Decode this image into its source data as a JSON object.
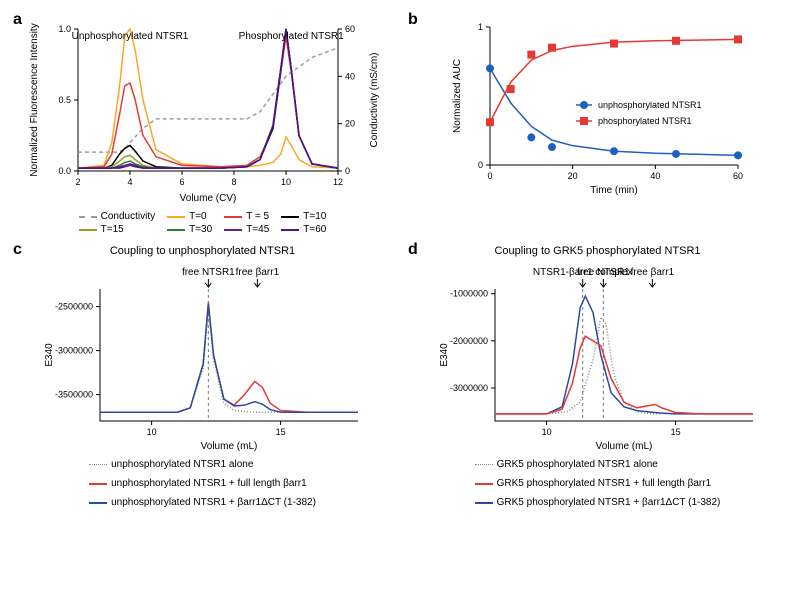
{
  "panel_a": {
    "label": "a",
    "type": "line",
    "xlabel": "Volume (CV)",
    "ylabel_left": "Normalized Fluorescence Intensity",
    "ylabel_right": "Conductivity (mS/cm)",
    "annot_left": "Unphosphorylated NTSR1",
    "annot_right": "Phosphorylated NTSR1",
    "xlim": [
      2,
      12
    ],
    "xtick_step": 2,
    "ylim_left": [
      0,
      1.0
    ],
    "ytick_left": [
      0,
      0.5,
      1.0
    ],
    "ylim_right": [
      0,
      60
    ],
    "ytick_right_step": 20,
    "background_color": "#ffffff",
    "line_width": 1.5,
    "legend": {
      "conductivity_label": "Conductivity",
      "t_labels": [
        "T=0",
        "T = 5",
        "T=10",
        "T=15",
        "T=30",
        "T=45",
        "T=60"
      ]
    },
    "conductivity": {
      "color": "#9e9e9e",
      "dash": "4,3",
      "x": [
        2,
        3,
        3.5,
        3.8,
        4,
        4.5,
        5,
        7.5,
        8,
        8.5,
        9,
        10,
        11,
        12
      ],
      "y": [
        8,
        8,
        8,
        9,
        12,
        18,
        22,
        22,
        22,
        22,
        25,
        40,
        48,
        52
      ]
    },
    "series": [
      {
        "name": "T=0",
        "color": "#f9a825",
        "x": [
          2,
          3,
          3.3,
          3.6,
          3.8,
          4,
          4.2,
          4.5,
          5,
          6,
          7.5,
          8.5,
          9,
          9.5,
          9.8,
          10,
          10.2,
          10.5,
          11,
          12
        ],
        "y": [
          0.02,
          0.04,
          0.2,
          0.6,
          0.95,
          1.0,
          0.85,
          0.5,
          0.15,
          0.05,
          0.03,
          0.03,
          0.04,
          0.06,
          0.12,
          0.24,
          0.18,
          0.08,
          0.03,
          0.02
        ]
      },
      {
        "name": "T=5",
        "color": "#e53935",
        "x": [
          2,
          3,
          3.3,
          3.6,
          3.8,
          4,
          4.2,
          4.5,
          5,
          6,
          7.5,
          8.5,
          9,
          9.5,
          9.8,
          10,
          10.2,
          10.5,
          11,
          12
        ],
        "y": [
          0.02,
          0.03,
          0.12,
          0.4,
          0.6,
          0.62,
          0.5,
          0.25,
          0.1,
          0.04,
          0.03,
          0.04,
          0.1,
          0.3,
          0.7,
          0.95,
          0.7,
          0.25,
          0.05,
          0.02
        ]
      },
      {
        "name": "T=10",
        "color": "#000000",
        "x": [
          2,
          3,
          3.3,
          3.6,
          3.8,
          4,
          4.2,
          4.5,
          5,
          6,
          7.5,
          8.5,
          9,
          9.5,
          9.8,
          10,
          10.2,
          10.5,
          11,
          12
        ],
        "y": [
          0.02,
          0.02,
          0.04,
          0.12,
          0.16,
          0.18,
          0.14,
          0.07,
          0.03,
          0.02,
          0.02,
          0.03,
          0.08,
          0.3,
          0.7,
          1.0,
          0.72,
          0.25,
          0.05,
          0.02
        ]
      },
      {
        "name": "T=15",
        "color": "#9e9d24",
        "x": [
          2,
          3,
          3.3,
          3.6,
          3.8,
          4,
          4.2,
          4.5,
          5,
          6,
          7.5,
          8.5,
          9,
          9.5,
          9.8,
          10,
          10.2,
          10.5,
          11,
          12
        ],
        "y": [
          0.02,
          0.02,
          0.03,
          0.07,
          0.1,
          0.11,
          0.08,
          0.04,
          0.02,
          0.02,
          0.02,
          0.03,
          0.08,
          0.32,
          0.72,
          1.0,
          0.72,
          0.25,
          0.05,
          0.02
        ]
      },
      {
        "name": "T=30",
        "color": "#2e7d32",
        "x": [
          2,
          3,
          3.3,
          3.6,
          3.8,
          4,
          4.2,
          4.5,
          5,
          6,
          7.5,
          8.5,
          9,
          9.5,
          9.8,
          10,
          10.2,
          10.5,
          11,
          12
        ],
        "y": [
          0.02,
          0.02,
          0.02,
          0.04,
          0.06,
          0.07,
          0.05,
          0.03,
          0.02,
          0.02,
          0.02,
          0.03,
          0.08,
          0.32,
          0.72,
          1.0,
          0.72,
          0.25,
          0.05,
          0.02
        ]
      },
      {
        "name": "T=45",
        "color": "#6a1b9a",
        "x": [
          2,
          3,
          3.3,
          3.6,
          3.8,
          4,
          4.2,
          4.5,
          5,
          6,
          7.5,
          8.5,
          9,
          9.5,
          9.8,
          10,
          10.2,
          10.5,
          11,
          12
        ],
        "y": [
          0.02,
          0.02,
          0.02,
          0.03,
          0.04,
          0.05,
          0.04,
          0.02,
          0.02,
          0.02,
          0.02,
          0.03,
          0.08,
          0.32,
          0.72,
          1.0,
          0.72,
          0.25,
          0.05,
          0.02
        ]
      },
      {
        "name": "T=60",
        "color": "#4a148c",
        "x": [
          2,
          3,
          3.3,
          3.6,
          3.8,
          4,
          4.2,
          4.5,
          5,
          6,
          7.5,
          8.5,
          9,
          9.5,
          9.8,
          10,
          10.2,
          10.5,
          11,
          12
        ],
        "y": [
          0.02,
          0.02,
          0.02,
          0.02,
          0.03,
          0.04,
          0.03,
          0.02,
          0.02,
          0.02,
          0.02,
          0.03,
          0.08,
          0.32,
          0.72,
          1.0,
          0.72,
          0.25,
          0.05,
          0.02
        ]
      }
    ]
  },
  "panel_b": {
    "label": "b",
    "type": "scatter-line",
    "xlabel": "Time (min)",
    "ylabel": "Normalized AUC",
    "xlim": [
      0,
      60
    ],
    "xtick_step": 20,
    "ylim": [
      0,
      1
    ],
    "ytick_positions": [
      0,
      1
    ],
    "ytick_labels": [
      "0",
      "1"
    ],
    "legend": [
      {
        "label": "unphosphorylated NTSR1",
        "color": "#1f5fbf",
        "marker": "circle"
      },
      {
        "label": "phosphorylated NTSR1",
        "color": "#e53935",
        "marker": "square"
      }
    ],
    "series": [
      {
        "name": "unphosphorylated",
        "color": "#1f5fbf",
        "marker": "circle",
        "points_x": [
          0,
          5,
          10,
          15,
          30,
          45,
          60
        ],
        "points_y": [
          0.7,
          0.55,
          0.2,
          0.13,
          0.1,
          0.08,
          0.07
        ],
        "fit_x": [
          0,
          5,
          10,
          15,
          20,
          30,
          40,
          50,
          60
        ],
        "fit_y": [
          0.7,
          0.45,
          0.28,
          0.18,
          0.14,
          0.1,
          0.085,
          0.078,
          0.07
        ]
      },
      {
        "name": "phosphorylated",
        "color": "#e53935",
        "marker": "square",
        "points_x": [
          0,
          5,
          10,
          15,
          30,
          45,
          60
        ],
        "points_y": [
          0.31,
          0.55,
          0.8,
          0.85,
          0.88,
          0.9,
          0.91
        ],
        "fit_x": [
          0,
          5,
          10,
          15,
          20,
          30,
          40,
          50,
          60
        ],
        "fit_y": [
          0.31,
          0.6,
          0.76,
          0.83,
          0.86,
          0.89,
          0.9,
          0.905,
          0.91
        ]
      }
    ]
  },
  "panel_c": {
    "label": "c",
    "title": "Coupling to unphosphorylated NTSR1",
    "type": "line",
    "xlabel": "Volume (mL)",
    "ylabel": "E340",
    "xlim": [
      8,
      18
    ],
    "xtick_positions": [
      10,
      15
    ],
    "ylim": [
      -3800000,
      -2300000
    ],
    "ytick_positions": [
      -3500000,
      -3000000,
      -2500000
    ],
    "ytick_labels": [
      "-3500000",
      "-3000000",
      "-2500000"
    ],
    "arrows": [
      {
        "label": "free NTSR1",
        "x": 12.2
      },
      {
        "label": "free βarr1",
        "x": 14.1
      }
    ],
    "vline": {
      "x": 12.2,
      "color": "#777",
      "dash": "3,3"
    },
    "legend": [
      {
        "label": "unphosphorylated NTSR1 alone",
        "color": "#888",
        "style": "dotted"
      },
      {
        "label": "unphosphorylated NTSR1 + full length βarr1",
        "color": "#e53935",
        "style": "solid"
      },
      {
        "label": "unphosphorylated NTSR1 + βarr1ΔCT (1-382)",
        "color": "#2f4a9e",
        "style": "solid"
      }
    ],
    "series": [
      {
        "name": "alone",
        "color": "#888",
        "dash": "1,2",
        "x": [
          8,
          10,
          11,
          11.5,
          12,
          12.2,
          12.4,
          12.8,
          13.2,
          14,
          15,
          16,
          18
        ],
        "y": [
          -3700000,
          -3700000,
          -3700000,
          -3650000,
          -3200000,
          -2500000,
          -3100000,
          -3600000,
          -3680000,
          -3700000,
          -3700000,
          -3700000,
          -3700000
        ]
      },
      {
        "name": "full",
        "color": "#e53935",
        "dash": "",
        "x": [
          8,
          10,
          11,
          11.5,
          12,
          12.2,
          12.4,
          12.8,
          13.2,
          13.6,
          14,
          14.3,
          14.6,
          15,
          16,
          18
        ],
        "y": [
          -3700000,
          -3700000,
          -3700000,
          -3650000,
          -3150000,
          -2450000,
          -3050000,
          -3550000,
          -3620000,
          -3500000,
          -3350000,
          -3420000,
          -3600000,
          -3680000,
          -3700000,
          -3700000
        ]
      },
      {
        "name": "dct",
        "color": "#2f4a9e",
        "dash": "",
        "x": [
          8,
          10,
          11,
          11.5,
          12,
          12.2,
          12.4,
          12.8,
          13.2,
          13.6,
          14,
          14.3,
          14.6,
          15,
          16,
          18
        ],
        "y": [
          -3700000,
          -3700000,
          -3700000,
          -3650000,
          -3150000,
          -2470000,
          -3050000,
          -3550000,
          -3630000,
          -3620000,
          -3580000,
          -3610000,
          -3670000,
          -3700000,
          -3700000,
          -3700000
        ]
      }
    ]
  },
  "panel_d": {
    "label": "d",
    "title": "Coupling to GRK5 phosphorylated NTSR1",
    "type": "line",
    "xlabel": "Volume (mL)",
    "ylabel": "E340",
    "xlim": [
      8,
      18
    ],
    "xtick_positions": [
      10,
      15
    ],
    "ylim": [
      -3700000,
      -900000
    ],
    "ytick_positions": [
      -3000000,
      -2000000,
      -1000000
    ],
    "ytick_labels": [
      "-3000000",
      "-2000000",
      "-1000000"
    ],
    "arrows": [
      {
        "label": "NTSR1-βarr1 complex",
        "x": 11.4
      },
      {
        "label": "free NTSR1",
        "x": 12.2
      },
      {
        "label": "free βarr1",
        "x": 14.1
      }
    ],
    "vlines": [
      {
        "x": 11.4,
        "color": "#777",
        "dash": "3,3"
      },
      {
        "x": 12.2,
        "color": "#777",
        "dash": "3,3"
      }
    ],
    "legend": [
      {
        "label": "GRK5 phosphorylated NTSR1 alone",
        "color": "#888",
        "style": "dotted"
      },
      {
        "label": "GRK5 phosphorylated NTSR1 + full length βarr1",
        "color": "#e53935",
        "style": "solid"
      },
      {
        "label": "GRK5 phosphorylated NTSR1 + βarr1ΔCT (1-382)",
        "color": "#2f4a9e",
        "style": "solid"
      }
    ],
    "series": [
      {
        "name": "alone",
        "color": "#888",
        "dash": "1,2",
        "x": [
          8,
          10,
          10.8,
          11.3,
          11.8,
          12.1,
          12.3,
          12.6,
          13,
          13.5,
          14,
          15,
          16,
          18
        ],
        "y": [
          -3550000,
          -3550000,
          -3500000,
          -3300000,
          -2400000,
          -1500000,
          -1650000,
          -2700000,
          -3300000,
          -3500000,
          -3540000,
          -3550000,
          -3550000,
          -3550000
        ]
      },
      {
        "name": "dct",
        "color": "#2f4a9e",
        "dash": "",
        "x": [
          8,
          10,
          10.6,
          11.0,
          11.3,
          11.5,
          11.8,
          12.1,
          12.5,
          13,
          13.5,
          14,
          14.4,
          15,
          16,
          18
        ],
        "y": [
          -3550000,
          -3550000,
          -3400000,
          -2500000,
          -1300000,
          -1050000,
          -1400000,
          -2300000,
          -3100000,
          -3400000,
          -3480000,
          -3510000,
          -3530000,
          -3550000,
          -3550000,
          -3550000
        ]
      },
      {
        "name": "full",
        "color": "#e53935",
        "dash": "",
        "x": [
          8,
          10,
          10.6,
          11.0,
          11.3,
          11.5,
          11.8,
          12.1,
          12.5,
          13,
          13.5,
          13.9,
          14.2,
          14.5,
          15,
          16,
          18
        ],
        "y": [
          -3550000,
          -3550000,
          -3450000,
          -2900000,
          -2150000,
          -1900000,
          -2000000,
          -2100000,
          -2800000,
          -3300000,
          -3420000,
          -3380000,
          -3350000,
          -3430000,
          -3520000,
          -3550000,
          -3550000
        ]
      }
    ]
  }
}
